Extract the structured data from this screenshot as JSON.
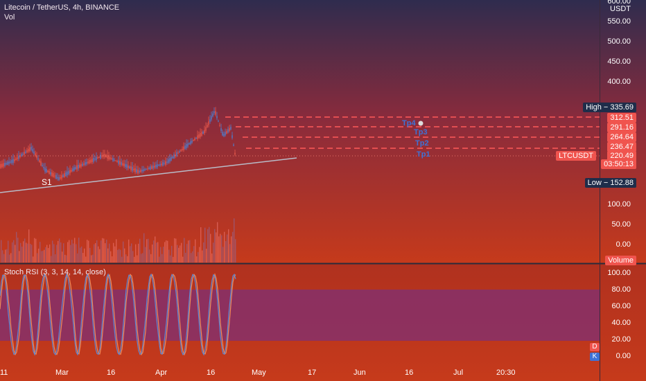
{
  "header": {
    "symbol_line": "Litecoin / TetherUS, 4h, BINANCE",
    "volume_label": "Vol"
  },
  "axis": {
    "top_partial": "600.00",
    "currency": "USDT",
    "price_ticks": [
      "550.00",
      "500.00",
      "450.00",
      "400.00",
      "100.00",
      "50.00",
      "0.00"
    ],
    "rsi_ticks": [
      "100.00",
      "80.00",
      "60.00",
      "40.00",
      "20.00",
      "0.00"
    ],
    "x_ticks": [
      "11",
      "Mar",
      "16",
      "Apr",
      "16",
      "May",
      "17",
      "Jun",
      "16",
      "Jul",
      "20:30"
    ]
  },
  "price_tags": {
    "high": "High − 335.69",
    "tp4": "312.51",
    "tp3": "291.16",
    "tp2": "264.64",
    "tp1": "236.47",
    "symbol": "LTCUSDT",
    "current": "220.49",
    "countdown": "03:50:13",
    "low": "Low − 152.88",
    "volume": "Volume"
  },
  "annotations": {
    "support": "S1",
    "tp4": "Tp4",
    "tp3": "Tp3",
    "tp2": "Tp2",
    "tp1": "Tp1"
  },
  "indicator": {
    "title": "Stoch RSI (3, 3, 14, 14, close)",
    "badge_d": "D",
    "badge_k": "K"
  },
  "colors": {
    "bg_top": "#2f2c4e",
    "bg_bottom": "#c63a1b",
    "target_line": "#ff5a5a",
    "price_tag": "#f0544e",
    "label_dark": "#1f2d4a",
    "tp_text": "#3e72d6",
    "k_line": "#5b8ad8",
    "d_line": "#f08a5a",
    "rsi_band": "#7a2f7a"
  }
}
